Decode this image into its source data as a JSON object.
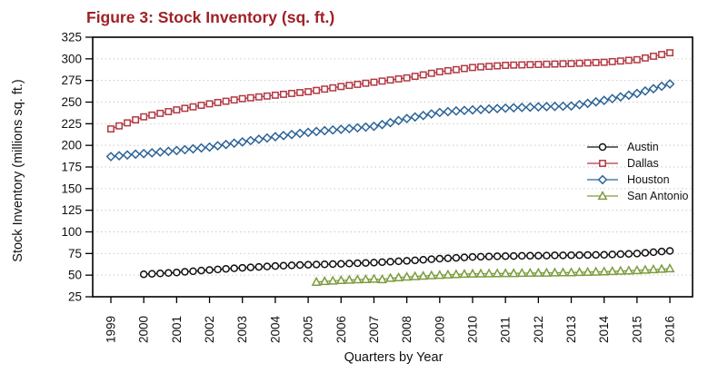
{
  "figure": {
    "title_color": "#9F2026",
    "frame_color": "#000000",
    "grid_color": "#c9c9c9",
    "background_color": "#ffffff"
  },
  "chart_data": {
    "type": "line",
    "title": "Figure 3: Stock Inventory (sq. ft.)",
    "xlabel": "Quarters by Year",
    "ylabel": "Stock Inventory (millions sq. ft.)",
    "x_unit": "quarter",
    "x_start_year": 1999,
    "x_tick_labels": [
      "1999",
      "2000",
      "2001",
      "2002",
      "2003",
      "2004",
      "2005",
      "2006",
      "2007",
      "2008",
      "2009",
      "2010",
      "2011",
      "2012",
      "2013",
      "2014",
      "2015",
      "2016"
    ],
    "y_ticks": [
      25,
      50,
      75,
      100,
      125,
      150,
      175,
      200,
      225,
      250,
      275,
      300,
      325
    ],
    "ylim": [
      25,
      325
    ],
    "grid": "horizontal-dotted",
    "legend_position": "inside-right",
    "series": [
      {
        "name": "Austin",
        "color": "#111111",
        "marker": "circle",
        "start": "2000Q1",
        "start_index": 4,
        "values": [
          51,
          51.5,
          52,
          52.5,
          53,
          53.8,
          54.5,
          55.3,
          56,
          56.6,
          57.3,
          57.9,
          58.5,
          59,
          59.5,
          60,
          60.5,
          60.9,
          61.3,
          61.7,
          62,
          62.3,
          62.5,
          62.8,
          63,
          63.4,
          63.8,
          64.1,
          64.5,
          65,
          65.5,
          66,
          66.5,
          67.1,
          67.8,
          68.4,
          69,
          69.5,
          70,
          70.5,
          71,
          71.3,
          71.5,
          71.8,
          72,
          72.1,
          72.3,
          72.4,
          72.5,
          72.6,
          72.8,
          72.9,
          73,
          73.1,
          73.3,
          73.4,
          73.5,
          73.9,
          74.3,
          74.6,
          75,
          75.8,
          76.5,
          77.3,
          78
        ]
      },
      {
        "name": "Dallas",
        "color": "#B23842",
        "marker": "square",
        "start": "1999Q1",
        "start_index": 0,
        "values": [
          219,
          222.5,
          226,
          229.5,
          233,
          235,
          237,
          239,
          241,
          242.8,
          244.5,
          246.3,
          248,
          249.5,
          251,
          252.5,
          254,
          255,
          256,
          257,
          258,
          259,
          260,
          261,
          262,
          263.5,
          265,
          266.5,
          268,
          269.3,
          270.5,
          271.8,
          273,
          274.3,
          275.5,
          276.8,
          278,
          279.8,
          281.5,
          283.3,
          285,
          286.3,
          287.5,
          288.8,
          290,
          290.7,
          291.3,
          291.9,
          292.5,
          292.8,
          293,
          293.3,
          293.5,
          293.8,
          294,
          294.3,
          294.5,
          294.9,
          295.3,
          295.7,
          296,
          296.8,
          297.5,
          298.3,
          299,
          301,
          303,
          305,
          307
        ]
      },
      {
        "name": "Houston",
        "color": "#2C6497",
        "marker": "diamond",
        "start": "1999Q1",
        "start_index": 0,
        "values": [
          187,
          188,
          188.9,
          189.8,
          190.5,
          191.4,
          192.3,
          193.1,
          194,
          195,
          196,
          197,
          198,
          199.5,
          201,
          202.5,
          204,
          205.5,
          207,
          208.5,
          210,
          211.3,
          212.5,
          213.8,
          215,
          216,
          217,
          217.8,
          218.5,
          219.4,
          220.3,
          221.1,
          222,
          224,
          226.3,
          228.6,
          231,
          232.8,
          234.5,
          236.3,
          238,
          239,
          239.8,
          240.4,
          241,
          241.5,
          242,
          242.5,
          243,
          243.4,
          243.8,
          244.1,
          244.5,
          244.8,
          245,
          245.2,
          245.5,
          247,
          248.6,
          250.3,
          252,
          254,
          256,
          258,
          260,
          262.8,
          265.5,
          268.3,
          271
        ]
      },
      {
        "name": "San Antonio",
        "color": "#7C9C3E",
        "marker": "triangle",
        "start": "2005Q2",
        "start_index": 25,
        "values": [
          42,
          42.8,
          43.4,
          44,
          44.4,
          44.8,
          45.1,
          45.5,
          45,
          46.5,
          47.2,
          48,
          48.5,
          49,
          49.5,
          50,
          50.4,
          50.8,
          51.2,
          51.5,
          51.6,
          51.8,
          51.9,
          52,
          52.1,
          52.3,
          52.4,
          52.5,
          52.6,
          52.8,
          52.9,
          53,
          53.3,
          53.5,
          53.8,
          54,
          54.4,
          54.8,
          55.1,
          55.5,
          56,
          56.5,
          57,
          57.5
        ]
      }
    ],
    "legend": {
      "items": [
        "Austin",
        "Dallas",
        "Houston",
        "San Antonio"
      ]
    }
  }
}
